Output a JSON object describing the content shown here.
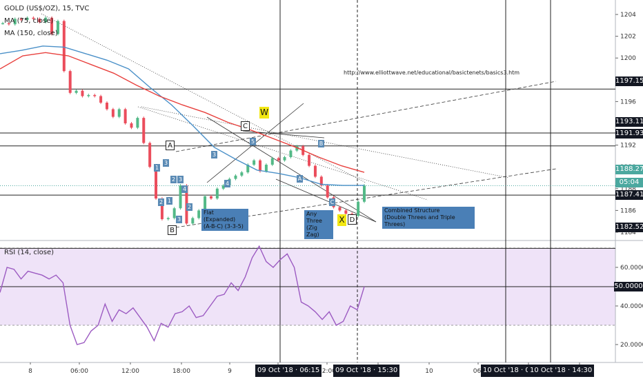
{
  "header": {
    "symbol": "GOLD (US$/OZ), 15, TVC",
    "ma1": "MA (75, close)",
    "ma2": "MA (150, close)",
    "rsi": "RSI (14, close)"
  },
  "annotation_url": "http://www.elliottwave.net/educational/basictenets/basics3.htm",
  "price_tags": [
    {
      "label": "1197.15",
      "value": 1197.15
    },
    {
      "label": "1193.11",
      "value": 1193.11
    },
    {
      "label": "1191.93",
      "value": 1191.93
    },
    {
      "label": "1188.27",
      "value": 1188.27
    },
    {
      "label": "05:04",
      "value": 1186.9
    },
    {
      "label": "1187.41",
      "value": 1185.3
    },
    {
      "label": "1182.52",
      "value": 1182.52
    }
  ],
  "rsi_tag": "50.0000",
  "time_tags": [
    "09 Oct '18 · 06:15",
    "09 Oct '18 · 15:30",
    "10 Oct '18 · 09:00",
    "10 Oct '18 · 14:30"
  ],
  "wave_labels": {
    "A": "A",
    "B": "B",
    "C": "C",
    "W": "W",
    "X": "X",
    "D": "D"
  },
  "notes": {
    "flat": [
      "Flat (Expanded)",
      "(A-B-C) (3-3-5)"
    ],
    "any_three": [
      "Any Three",
      "(Zig Zag)"
    ],
    "combined": [
      "Combined Structure",
      "(Double Threes and Triple Threes)"
    ]
  },
  "chart_data": {
    "type": "line",
    "symbol": "GOLD (US$/OZ)",
    "timeframe": "15",
    "price_axis": {
      "ticks": [
        1204,
        1202,
        1200,
        1198,
        1196,
        1194,
        1192,
        1190,
        1188,
        1186,
        1184
      ],
      "range": [
        1183,
        1205
      ]
    },
    "time_axis": {
      "ticks": [
        "8",
        "06:00",
        "12:00",
        "18:00",
        "9",
        "06:00",
        "12:00",
        "18:00",
        "10",
        "06:",
        "12:00",
        "18:00"
      ]
    },
    "rsi_axis": {
      "ticks": [
        60,
        40,
        20
      ],
      "range": [
        14,
        76
      ],
      "band": [
        30,
        70
      ]
    },
    "series": [
      {
        "name": "GOLD (US$/OZ), 15, TVC",
        "values": [
          1203.2,
          1203.1,
          1203.6,
          1203.5,
          1203.7,
          1203.6,
          1203.3,
          1203.7,
          1202.2,
          1203.4,
          1198.8,
          1196.8,
          1197.0,
          1196.5,
          1196.6,
          1196.5,
          1195.9,
          1195.3,
          1194.6,
          1195.3,
          1194.0,
          1193.6,
          1194.5,
          1192.2,
          1190.0,
          1187.1,
          1185.2,
          1185.3,
          1186.2,
          1188.3,
          1184.8,
          1185.3,
          1186.0,
          1187.3,
          1187.1,
          1188.0,
          1188.3,
          1188.9,
          1189.2,
          1189.5,
          1190.2,
          1190.6,
          1189.6,
          1190.2,
          1190.8,
          1190.6,
          1190.9,
          1191.5,
          1191.9,
          1191.1,
          1190.1,
          1189.1,
          1188.3,
          1187.2,
          1186.3,
          1186.0,
          1185.7,
          1185.5,
          1186.8,
          1188.3
        ]
      },
      {
        "name": "MA (75, close)",
        "values": [
          1200.4,
          1200.7,
          1201.1,
          1201.0,
          1200.4,
          1199.8,
          1199.0,
          1197.3,
          1195.7,
          1193.8,
          1191.8,
          1190.7,
          1189.7,
          1189.4,
          1189.0,
          1188.4,
          1188.3,
          1188.3
        ]
      },
      {
        "name": "MA (150, close)",
        "values": [
          1199.0,
          1200.2,
          1200.5,
          1200.2,
          1199.4,
          1198.6,
          1197.5,
          1196.5,
          1195.7,
          1195.0,
          1194.1,
          1193.4,
          1192.6,
          1191.8,
          1190.9,
          1190.1,
          1189.5
        ]
      },
      {
        "name": "RSI (14, close)",
        "values": [
          47,
          60,
          59,
          54,
          58,
          57,
          56,
          54,
          56,
          52,
          30,
          20,
          21,
          27,
          30,
          41,
          32,
          38,
          36,
          39,
          34,
          29,
          22,
          31,
          29,
          36,
          37,
          40,
          34,
          35,
          40,
          45,
          46,
          52,
          48,
          55,
          65,
          71,
          63,
          60,
          64,
          67,
          60,
          42,
          40,
          37,
          33,
          37,
          30,
          32,
          40,
          38,
          50
        ]
      }
    ],
    "levels": [
      1197.15,
      1193.11,
      1191.93,
      1187.41,
      1182.52
    ],
    "rsi_level": 50
  }
}
